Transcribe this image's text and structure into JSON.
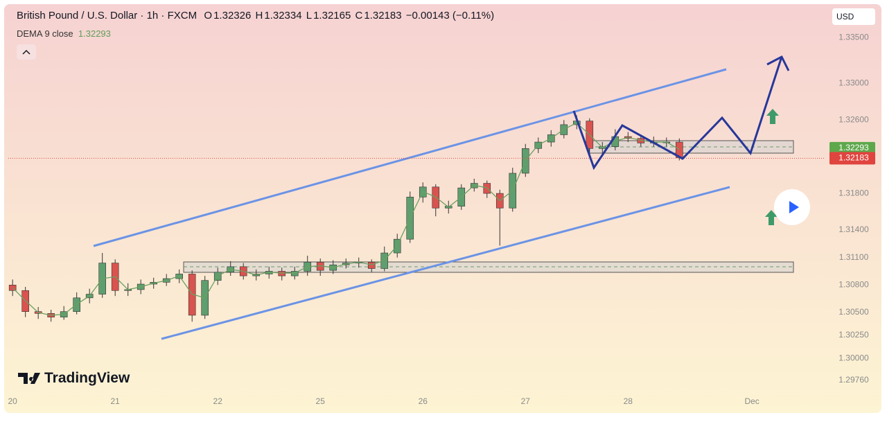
{
  "header": {
    "symbol": "British Pound / U.S. Dollar · 1h · FXCM",
    "o_label": "O",
    "o": "1.32326",
    "h_label": "H",
    "h": "1.32334",
    "l_label": "L",
    "l": "1.32165",
    "c_label": "C",
    "c": "1.32183",
    "change": "−0.00143 (−0.11%)",
    "currency": "USD",
    "brand": "TradingView"
  },
  "chart_data": {
    "type": "candlestick",
    "x": [
      0,
      3,
      6,
      9,
      12,
      15,
      18,
      21,
      24,
      27,
      30,
      33,
      36,
      39,
      42,
      45,
      48,
      51,
      54,
      57,
      60,
      63,
      66,
      69,
      72,
      75,
      78,
      81,
      84,
      87,
      90,
      93,
      96,
      99,
      102,
      105,
      108,
      111,
      114,
      117,
      120,
      123,
      126,
      129,
      132,
      135,
      138,
      141,
      144,
      147,
      150,
      153,
      156
    ],
    "open": [
      1.308,
      1.3074,
      1.3051,
      1.3049,
      1.3045,
      1.3051,
      1.3066,
      1.307,
      1.3104,
      1.3074,
      1.3075,
      1.3081,
      1.3083,
      1.3087,
      1.3092,
      1.3047,
      1.3085,
      1.3094,
      1.31,
      1.309,
      1.3092,
      1.3095,
      1.309,
      1.3095,
      1.3105,
      1.3096,
      1.3102,
      1.3104,
      1.3105,
      1.3098,
      1.3115,
      1.313,
      1.3176,
      1.3187,
      1.3164,
      1.3166,
      1.3186,
      1.3191,
      1.318,
      1.3164,
      1.3202,
      1.3229,
      1.3236,
      1.3244,
      1.3255,
      1.3259,
      1.3229,
      1.3231,
      1.3242,
      1.324,
      1.3235,
      1.3236,
      1.3236
    ],
    "high": [
      1.3086,
      1.3078,
      1.3056,
      1.3053,
      1.3057,
      1.3072,
      1.3076,
      1.3115,
      1.3108,
      1.3082,
      1.3086,
      1.3088,
      1.3092,
      1.3097,
      1.3096,
      1.309,
      1.3099,
      1.3106,
      1.3104,
      1.3097,
      1.31,
      1.3099,
      1.31,
      1.3112,
      1.3109,
      1.3107,
      1.3109,
      1.311,
      1.3108,
      1.3122,
      1.3136,
      1.3182,
      1.3192,
      1.319,
      1.3172,
      1.319,
      1.3196,
      1.3194,
      1.3184,
      1.3208,
      1.3234,
      1.3241,
      1.3249,
      1.326,
      1.3265,
      1.3262,
      1.3236,
      1.325,
      1.3247,
      1.3244,
      1.3242,
      1.3241,
      1.324
    ],
    "low": [
      1.3068,
      1.3045,
      1.3043,
      1.304,
      1.3042,
      1.3048,
      1.306,
      1.3066,
      1.3068,
      1.3068,
      1.307,
      1.3076,
      1.3079,
      1.3082,
      1.304,
      1.3043,
      1.308,
      1.309,
      1.3086,
      1.3085,
      1.3087,
      1.3085,
      1.3086,
      1.309,
      1.309,
      1.3092,
      1.3098,
      1.3099,
      1.3094,
      1.3095,
      1.311,
      1.3126,
      1.317,
      1.3155,
      1.3158,
      1.3162,
      1.3182,
      1.3175,
      1.3123,
      1.316,
      1.3198,
      1.3224,
      1.3231,
      1.324,
      1.325,
      1.322,
      1.3222,
      1.3227,
      1.3236,
      1.3231,
      1.3231,
      1.3231,
      1.3216
    ],
    "close": [
      1.3074,
      1.3051,
      1.3049,
      1.3045,
      1.3051,
      1.3066,
      1.307,
      1.3104,
      1.3074,
      1.3075,
      1.3081,
      1.3083,
      1.3087,
      1.3092,
      1.3047,
      1.3085,
      1.3094,
      1.31,
      1.309,
      1.3092,
      1.3095,
      1.309,
      1.3095,
      1.3105,
      1.3096,
      1.3102,
      1.3104,
      1.3105,
      1.3098,
      1.3115,
      1.313,
      1.3176,
      1.3187,
      1.3164,
      1.3166,
      1.3186,
      1.3191,
      1.318,
      1.3164,
      1.3202,
      1.3229,
      1.3236,
      1.3244,
      1.3255,
      1.3259,
      1.3229,
      1.3231,
      1.3242,
      1.324,
      1.3235,
      1.3236,
      1.3236,
      1.3219
    ],
    "up_color": "#5f9e6e",
    "down_color": "#d9534f",
    "dema": {
      "name": "DEMA 9 close",
      "color": "#6aa060",
      "values": [
        1.3077,
        1.3063,
        1.305,
        1.3047,
        1.3048,
        1.3059,
        1.3068,
        1.3087,
        1.3089,
        1.3075,
        1.3078,
        1.3082,
        1.3085,
        1.309,
        1.307,
        1.3066,
        1.309,
        1.3097,
        1.3095,
        1.3091,
        1.3094,
        1.3093,
        1.3093,
        1.31,
        1.3101,
        1.3099,
        1.3103,
        1.3105,
        1.3102,
        1.3107,
        1.3123,
        1.3153,
        1.3182,
        1.3176,
        1.3165,
        1.3176,
        1.3189,
        1.3186,
        1.3172,
        1.3183,
        1.3216,
        1.3233,
        1.324,
        1.325,
        1.3257,
        1.3244,
        1.323,
        1.3237,
        1.3241,
        1.3238,
        1.3236,
        1.3236,
        1.3228
      ],
      "last": 1.32293
    },
    "last_price": 1.32183,
    "ylim": [
      1.296,
      1.3385
    ],
    "yticks": [
      {
        "value": 1.335,
        "label": "1.33500"
      },
      {
        "value": 1.33,
        "label": "1.33000"
      },
      {
        "value": 1.326,
        "label": "1.32600"
      },
      {
        "value": 1.318,
        "label": "1.31800"
      },
      {
        "value": 1.314,
        "label": "1.31400"
      },
      {
        "value": 1.311,
        "label": "1.31100"
      },
      {
        "value": 1.308,
        "label": "1.30800"
      },
      {
        "value": 1.305,
        "label": "1.30500"
      },
      {
        "value": 1.3025,
        "label": "1.30250"
      },
      {
        "value": 1.3,
        "label": "1.30000"
      },
      {
        "value": 1.2976,
        "label": "1.29760"
      }
    ],
    "xlim": [
      -1,
      190
    ],
    "xticks": [
      {
        "value": 0,
        "label": "20"
      },
      {
        "value": 24,
        "label": "21"
      },
      {
        "value": 48,
        "label": "22"
      },
      {
        "value": 72,
        "label": "25"
      },
      {
        "value": 96,
        "label": "26"
      },
      {
        "value": 120,
        "label": "27"
      },
      {
        "value": 144,
        "label": "28"
      },
      {
        "value": 173,
        "label": "Dec"
      }
    ]
  }
}
